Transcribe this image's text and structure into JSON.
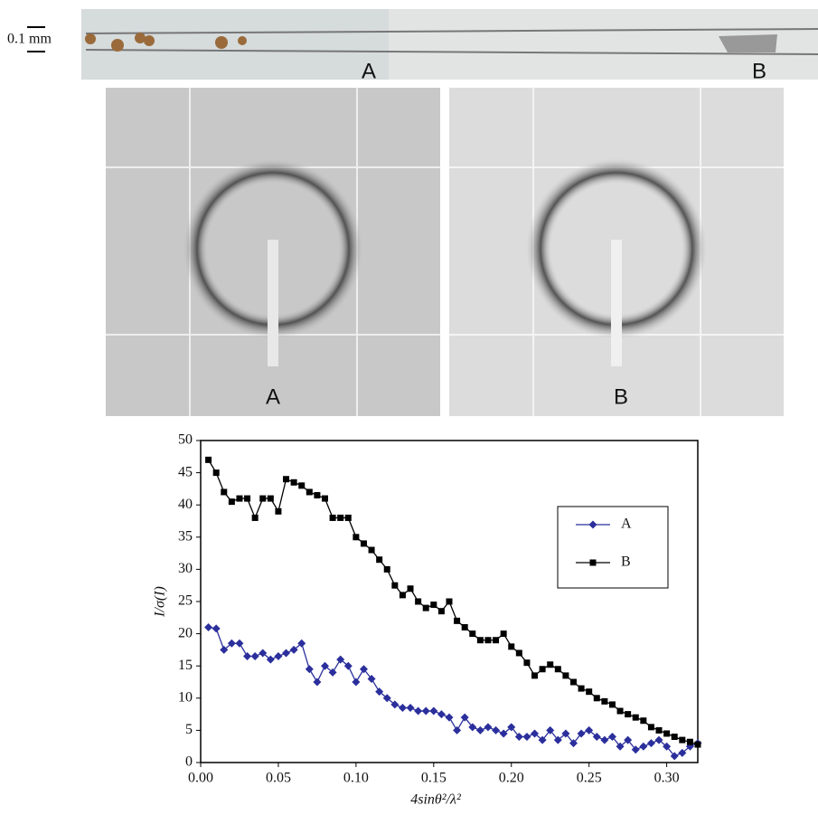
{
  "figure": {
    "scale_label": "0.1 mm",
    "strip_labels": [
      "A",
      "B"
    ],
    "pattern_labels": [
      "A",
      "B"
    ]
  },
  "chart_data": {
    "type": "line",
    "xlabel": "4sinθ²/λ²",
    "ylabel": "I/σ(I)",
    "x": [
      0.005,
      0.01,
      0.015,
      0.02,
      0.025,
      0.03,
      0.035,
      0.04,
      0.045,
      0.05,
      0.055,
      0.06,
      0.065,
      0.07,
      0.075,
      0.08,
      0.085,
      0.09,
      0.095,
      0.1,
      0.105,
      0.11,
      0.115,
      0.12,
      0.125,
      0.13,
      0.135,
      0.14,
      0.145,
      0.15,
      0.155,
      0.16,
      0.165,
      0.17,
      0.175,
      0.18,
      0.185,
      0.19,
      0.195,
      0.2,
      0.205,
      0.21,
      0.215,
      0.22,
      0.225,
      0.23,
      0.235,
      0.24,
      0.245,
      0.25,
      0.255,
      0.26,
      0.265,
      0.27,
      0.275,
      0.28,
      0.285,
      0.29,
      0.295,
      0.3,
      0.305,
      0.31,
      0.315,
      0.32
    ],
    "series": [
      {
        "name": "A",
        "color": "#2b2f9c",
        "marker": "diamond",
        "values": [
          21,
          20.8,
          17.5,
          18.5,
          18.5,
          16.5,
          16.5,
          17,
          16,
          16.5,
          17,
          17.5,
          18.5,
          14.5,
          12.5,
          15,
          14,
          16,
          15,
          12.5,
          14.5,
          13,
          11,
          10,
          9,
          8.5,
          8.5,
          8,
          8,
          8,
          7.5,
          7,
          5,
          7,
          5.5,
          5,
          5.5,
          5,
          4.5,
          5.5,
          4,
          4,
          4.5,
          3.5,
          5,
          3.5,
          4.5,
          3,
          4.5,
          5,
          4,
          3.5,
          4,
          2.5,
          3.5,
          2,
          2.5,
          3,
          3.5,
          2.5,
          1,
          1.5,
          2.5,
          3
        ]
      },
      {
        "name": "B",
        "color": "#000000",
        "marker": "square",
        "values": [
          47,
          45,
          42,
          40.5,
          41,
          41,
          38,
          41,
          41,
          39,
          44,
          43.5,
          43,
          42,
          41.5,
          41,
          38,
          38,
          38,
          35,
          34,
          33,
          31.5,
          30,
          27.5,
          26,
          27,
          25,
          24,
          24.5,
          23.5,
          25,
          22,
          21,
          20,
          19,
          19,
          19,
          20,
          18,
          17,
          15.5,
          13.5,
          14.5,
          15.2,
          14.5,
          13.5,
          12.5,
          11.5,
          11,
          10,
          9.5,
          9,
          8,
          7.5,
          7,
          6.5,
          5.5,
          5,
          4.5,
          4,
          3.5,
          3.2,
          2.8
        ]
      }
    ],
    "xlim": [
      0,
      0.32
    ],
    "xticks": [
      {
        "value": 0,
        "label": "0.00"
      },
      0.05,
      {
        "value": 0.1,
        "label": "0.10"
      },
      0.15,
      {
        "value": 0.2,
        "label": "0.20"
      },
      0.25,
      {
        "value": 0.3,
        "label": "0.30"
      }
    ],
    "ylim": [
      0,
      50
    ],
    "yticks": [
      0,
      5,
      10,
      15,
      20,
      25,
      30,
      35,
      40,
      45,
      50
    ],
    "grid": false,
    "legend": "right"
  }
}
